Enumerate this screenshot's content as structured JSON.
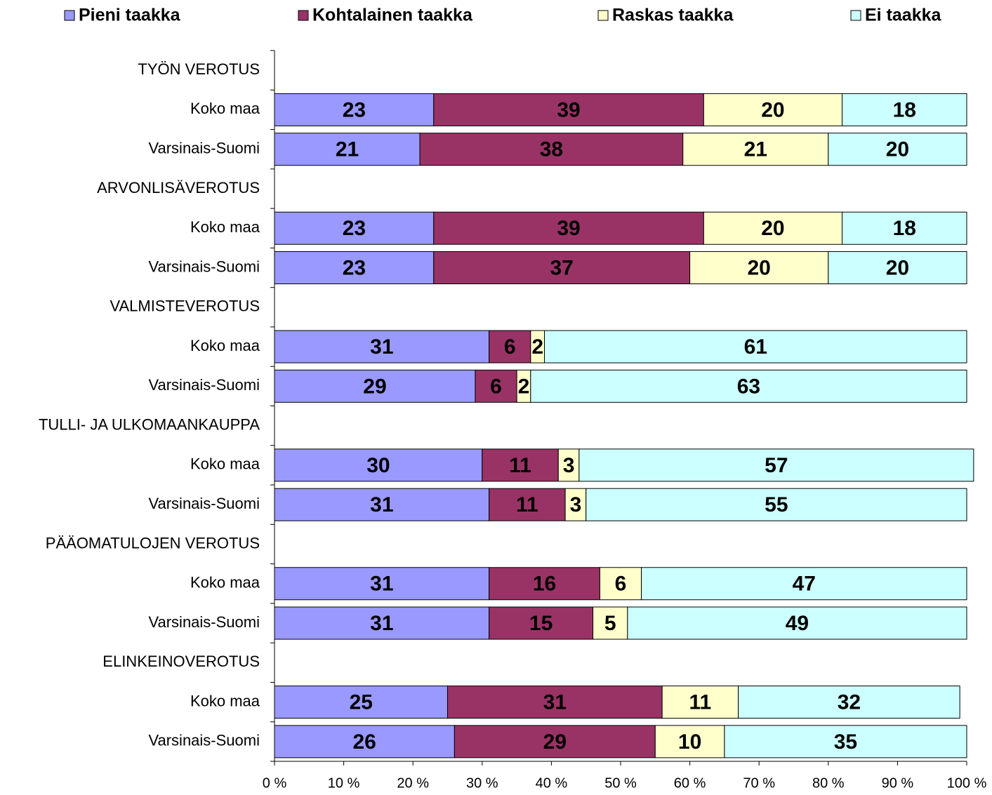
{
  "chart_data": {
    "type": "stacked-barh",
    "categories": [
      "TYÖN VEROTUS",
      "Koko maa",
      "Varsinais-Suomi",
      "ARVONLISÄVEROTUS",
      "Koko maa",
      "Varsinais-Suomi",
      "VALMISTEVEROTUS",
      "Koko maa",
      "Varsinais-Suomi",
      "TULLI- JA ULKOMAANKAUPPA",
      "Koko maa",
      "Varsinais-Suomi",
      "PÄÄOMATULOJEN VEROTUS",
      "Koko maa",
      "Varsinais-Suomi",
      "ELINKEINOVEROTUS",
      "Koko maa",
      "Varsinais-Suomi"
    ],
    "series": [
      {
        "name": "Pieni taakka",
        "color": "#9999ff",
        "values": [
          null,
          23,
          21,
          null,
          23,
          23,
          null,
          31,
          29,
          null,
          30,
          31,
          null,
          31,
          31,
          null,
          25,
          26
        ]
      },
      {
        "name": "Kohtalainen taakka",
        "color": "#993366",
        "values": [
          null,
          39,
          38,
          null,
          39,
          37,
          null,
          6,
          6,
          null,
          11,
          11,
          null,
          16,
          15,
          null,
          31,
          29
        ]
      },
      {
        "name": "Raskas taakka",
        "color": "#ffffcc",
        "values": [
          null,
          20,
          21,
          null,
          20,
          20,
          null,
          2,
          2,
          null,
          3,
          3,
          null,
          6,
          5,
          null,
          11,
          10
        ]
      },
      {
        "name": "Ei taakka",
        "color": "#ccffff",
        "values": [
          null,
          18,
          20,
          null,
          18,
          20,
          null,
          61,
          63,
          null,
          57,
          55,
          null,
          47,
          49,
          null,
          32,
          35
        ]
      }
    ],
    "xlim": [
      0,
      100
    ],
    "xticks": [
      {
        "value": 0,
        "label": "0 %"
      },
      {
        "value": 10,
        "label": "10 %"
      },
      {
        "value": 20,
        "label": "20 %"
      },
      {
        "value": 30,
        "label": "30 %"
      },
      {
        "value": 40,
        "label": "40 %"
      },
      {
        "value": 50,
        "label": "50 %"
      },
      {
        "value": 60,
        "label": "60 %"
      },
      {
        "value": 70,
        "label": "70 %"
      },
      {
        "value": 80,
        "label": "80 %"
      },
      {
        "value": 90,
        "label": "90 %"
      },
      {
        "value": 100,
        "label": "100 %"
      }
    ],
    "legend": "top"
  }
}
